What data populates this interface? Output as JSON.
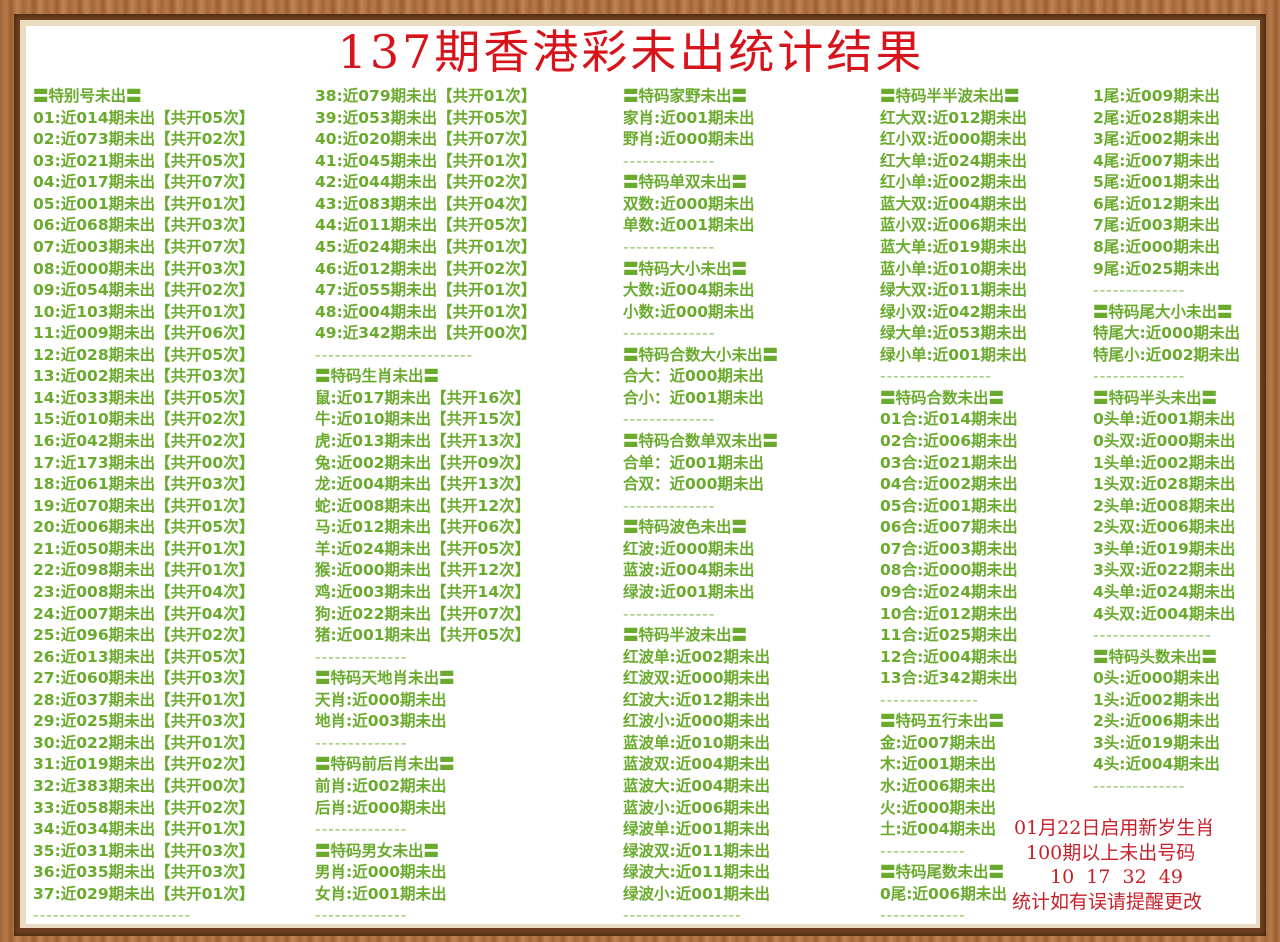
{
  "title": "137期香港彩未出统计结果",
  "columns": [
    [
      "〓特别号未出〓",
      "01:近014期未出【共开05次】",
      "02:近073期未出【共开02次】",
      "03:近021期未出【共开05次】",
      "04:近017期未出【共开07次】",
      "05:近001期未出【共开01次】",
      "06:近068期未出【共开03次】",
      "07:近003期未出【共开07次】",
      "08:近000期未出【共开03次】",
      "09:近054期未出【共开02次】",
      "10:近103期未出【共开01次】",
      "11:近009期未出【共开06次】",
      "12:近028期未出【共开05次】",
      "13:近002期未出【共开03次】",
      "14:近033期未出【共开05次】",
      "15:近010期未出【共开02次】",
      "16:近042期未出【共开02次】",
      "17:近173期未出【共开00次】",
      "18:近061期未出【共开03次】",
      "19:近070期未出【共开01次】",
      "20:近006期未出【共开05次】",
      "21:近050期未出【共开01次】",
      "22:近098期未出【共开01次】",
      "23:近008期未出【共开04次】",
      "24:近007期未出【共开04次】",
      "25:近096期未出【共开02次】",
      "26:近013期未出【共开05次】",
      "27:近060期未出【共开03次】",
      "28:近037期未出【共开01次】",
      "29:近025期未出【共开03次】",
      "30:近022期未出【共开01次】",
      "31:近019期未出【共开02次】",
      "32:近383期未出【共开00次】",
      "33:近058期未出【共开02次】",
      "34:近034期未出【共开01次】",
      "35:近031期未出【共开03次】",
      "36:近035期未出【共开03次】",
      "37:近029期未出【共开01次】",
      "------------------------"
    ],
    [
      "38:近079期未出【共开01次】",
      "39:近053期未出【共开05次】",
      "40:近020期未出【共开07次】",
      "41:近045期未出【共开01次】",
      "42:近044期未出【共开02次】",
      "43:近083期未出【共开04次】",
      "44:近011期未出【共开05次】",
      "45:近024期未出【共开01次】",
      "46:近012期未出【共开02次】",
      "47:近055期未出【共开01次】",
      "48:近004期未出【共开01次】",
      "49:近342期未出【共开00次】",
      "------------------------",
      "〓特码生肖未出〓",
      "鼠:近017期未出【共开16次】",
      "牛:近010期未出【共开15次】",
      "虎:近013期未出【共开13次】",
      "兔:近002期未出【共开09次】",
      "龙:近004期未出【共开13次】",
      "蛇:近008期未出【共开12次】",
      "马:近012期未出【共开06次】",
      "羊:近024期未出【共开05次】",
      "猴:近000期未出【共开12次】",
      "鸡:近003期未出【共开14次】",
      "狗:近022期未出【共开07次】",
      "猪:近001期未出【共开05次】",
      "--------------",
      "〓特码天地肖未出〓",
      "天肖:近000期未出",
      "地肖:近003期未出",
      "--------------",
      "〓特码前后肖未出〓",
      "前肖:近002期未出",
      "后肖:近000期未出",
      "--------------",
      "〓特码男女未出〓",
      "男肖:近000期未出",
      "女肖:近001期未出",
      "--------------"
    ],
    [
      "〓特码家野未出〓",
      "家肖:近001期未出",
      "野肖:近000期未出",
      "--------------",
      "〓特码单双未出〓",
      "双数:近000期未出",
      "单数:近001期未出",
      "--------------",
      "〓特码大小未出〓",
      "大数:近004期未出",
      "小数:近000期未出",
      "--------------",
      "〓特码合数大小未出〓",
      "合大：近000期未出",
      "合小：近001期未出",
      "--------------",
      "〓特码合数单双未出〓",
      "合单：近001期未出",
      "合双：近000期未出",
      "--------------",
      "〓特码波色未出〓",
      "红波:近000期未出",
      "蓝波:近004期未出",
      "绿波:近001期未出",
      "--------------",
      "〓特码半波未出〓",
      "红波单:近002期未出",
      "红波双:近000期未出",
      "红波大:近012期未出",
      "红波小:近000期未出",
      "蓝波单:近010期未出",
      "蓝波双:近004期未出",
      "蓝波大:近004期未出",
      "蓝波小:近006期未出",
      "绿波单:近001期未出",
      "绿波双:近011期未出",
      "绿波大:近011期未出",
      "绿波小:近001期未出",
      "------------------"
    ],
    [
      "〓特码半半波未出〓",
      "红大双:近012期未出",
      "红小双:近000期未出",
      "红大单:近024期未出",
      "红小单:近002期未出",
      "蓝大双:近004期未出",
      "蓝小双:近006期未出",
      "蓝大单:近019期未出",
      "蓝小单:近010期未出",
      "绿大双:近011期未出",
      "绿小双:近042期未出",
      "绿大单:近053期未出",
      "绿小单:近001期未出",
      "-----------------",
      "〓特码合数未出〓",
      "01合:近014期未出",
      "02合:近006期未出",
      "03合:近021期未出",
      "04合:近002期未出",
      "05合:近001期未出",
      "06合:近007期未出",
      "07合:近003期未出",
      "08合:近000期未出",
      "09合:近024期未出",
      "10合:近012期未出",
      "11合:近025期未出",
      "12合:近004期未出",
      "13合:近342期未出",
      "---------------",
      "〓特码五行未出〓",
      "金:近007期未出",
      "木:近001期未出",
      "水:近006期未出",
      "火:近000期未出",
      "土:近004期未出",
      "-------------",
      "〓特码尾数未出〓",
      "0尾:近006期未出",
      "-------------"
    ],
    [
      "1尾:近009期未出",
      "2尾:近028期未出",
      "3尾:近002期未出",
      "4尾:近007期未出",
      "5尾:近001期未出",
      "6尾:近012期未出",
      "7尾:近003期未出",
      "8尾:近000期未出",
      "9尾:近025期未出",
      "--------------",
      "〓特码尾大小未出〓",
      "特尾大:近000期未出",
      "特尾小:近002期未出",
      "--------------",
      "〓特码半头未出〓",
      "0头单:近001期未出",
      "0头双:近000期未出",
      "1头单:近002期未出",
      "1头双:近028期未出",
      "2头单:近008期未出",
      "2头双:近006期未出",
      "3头单:近019期未出",
      "3头双:近022期未出",
      "4头单:近024期未出",
      "4头双:近004期未出",
      "------------------",
      "〓特码头数未出〓",
      "0头:近000期未出",
      "1头:近002期未出",
      "2头:近006期未出",
      "3头:近019期未出",
      "4头:近004期未出",
      "--------------"
    ]
  ],
  "note": [
    "01月22日启用新岁生肖",
    "100期以上未出号码",
    "10  17  32  49",
    "统计如有误请提醒更改"
  ],
  "colors": {
    "title": "#d7141b",
    "text": "#6aab2e",
    "note": "#c8202a",
    "frame": "#a66b3d"
  }
}
